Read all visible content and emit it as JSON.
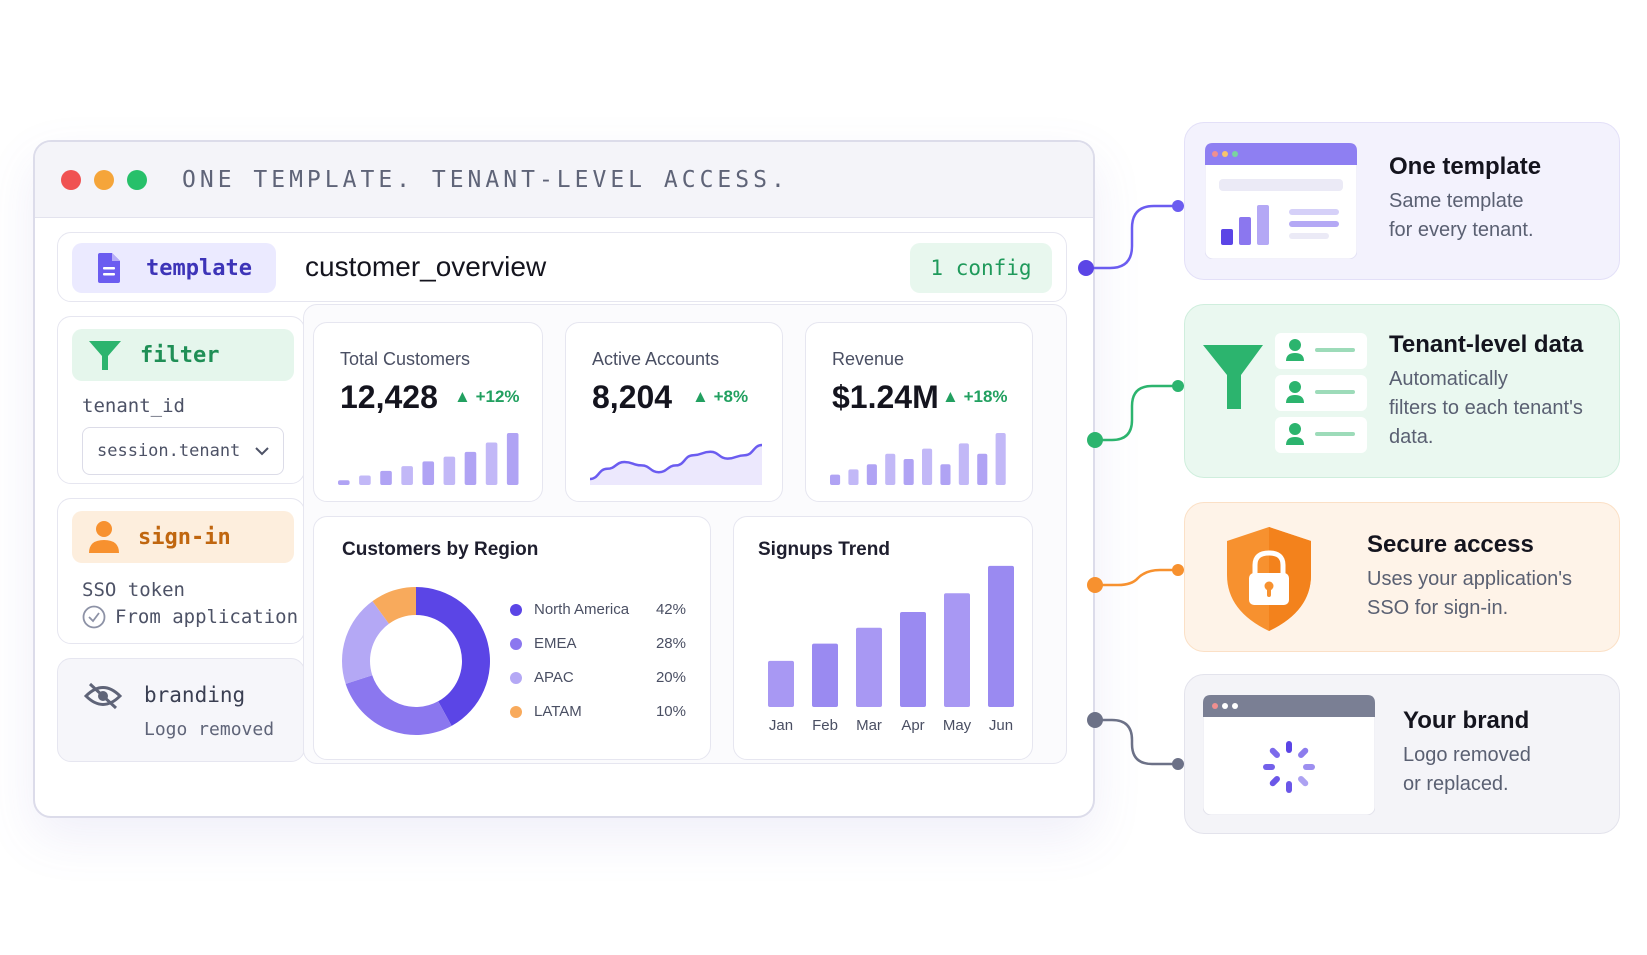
{
  "window": {
    "title": "ONE TEMPLATE. TENANT-LEVEL ACCESS.",
    "controls": [
      "close",
      "minimize",
      "maximize"
    ]
  },
  "template_row": {
    "chip_label": "template",
    "chip_icon": "document-icon",
    "name": "customer_overview",
    "config_badge": "1 config"
  },
  "filter_card": {
    "chip_label": "filter",
    "chip_icon": "funnel-icon",
    "field_label": "tenant_id",
    "select_value": "session.tenant"
  },
  "signin_card": {
    "chip_label": "sign-in",
    "chip_icon": "user-icon",
    "line1": "SSO token",
    "line2": "From application"
  },
  "branding_card": {
    "label": "branding",
    "icon": "eye-off-icon",
    "note": "Logo removed"
  },
  "metrics": [
    {
      "title": "Total Customers",
      "value": "12,428",
      "delta": "+12%",
      "spark": "bars",
      "spark_values": [
        1,
        2,
        3,
        4,
        5,
        6,
        7,
        9,
        11
      ]
    },
    {
      "title": "Active Accounts",
      "value": "8,204",
      "delta": "+8%",
      "spark": "line",
      "spark_values": [
        3,
        6,
        8,
        7,
        5,
        7,
        10,
        11,
        9,
        10,
        13
      ]
    },
    {
      "title": "Revenue",
      "value": "$1.24M",
      "delta": "+18%",
      "spark": "bars",
      "spark_values": [
        2,
        3,
        4,
        6,
        5,
        7,
        4,
        8,
        6,
        10
      ]
    }
  ],
  "region_panel": {
    "title": "Customers by Region",
    "segments": [
      {
        "name": "North America",
        "pct": "42%",
        "value": 42,
        "color": "#5b45e6"
      },
      {
        "name": "EMEA",
        "pct": "28%",
        "value": 28,
        "color": "#8b77ef"
      },
      {
        "name": "APAC",
        "pct": "20%",
        "value": 20,
        "color": "#b4a8f5"
      },
      {
        "name": "LATAM",
        "pct": "10%",
        "value": 10,
        "color": "#f8aa5c"
      }
    ]
  },
  "signup_panel": {
    "title": "Signups Trend"
  },
  "chart_data": {
    "type": "bar",
    "title": "Signups Trend",
    "categories": [
      "Jan",
      "Feb",
      "Mar",
      "Apr",
      "May",
      "Jun"
    ],
    "values": [
      32,
      44,
      55,
      66,
      79,
      98
    ],
    "ylim": [
      0,
      100
    ],
    "grid": false
  },
  "features": [
    {
      "title": "One template",
      "desc1": "Same template",
      "desc2": "for every tenant.",
      "desc3": "",
      "icon": "template-window-icon",
      "color": "#6b5cf0"
    },
    {
      "title": "Tenant-level data",
      "desc1": "Automatically",
      "desc2": "filters to each tenant's",
      "desc3": "data.",
      "icon": "funnel-users-icon",
      "color": "#2cb46e"
    },
    {
      "title": "Secure access",
      "desc1": "Uses your application's",
      "desc2": "SSO for sign-in.",
      "desc3": "",
      "icon": "shield-lock-icon",
      "color": "#f7912f"
    },
    {
      "title": "Your brand",
      "desc1": "Logo removed",
      "desc2": "or replaced.",
      "desc3": "",
      "icon": "browser-loading-icon",
      "color": "#6c7187"
    }
  ]
}
